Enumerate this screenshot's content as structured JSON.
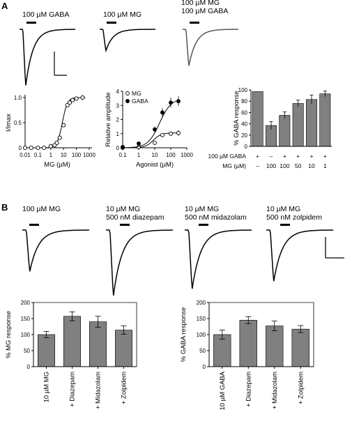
{
  "panels": {
    "A": "A",
    "B": "B"
  },
  "trace_labels_A": [
    [
      "100 µM GABA"
    ],
    [
      "100 µM MG"
    ],
    [
      "100 µM MG",
      "100 µM GABA"
    ]
  ],
  "trace_labels_B": [
    [
      "100 µM MG"
    ],
    [
      "10 µM MG",
      "500 nM diazepam"
    ],
    [
      "10 µM MG",
      "500 nM midazolam"
    ],
    [
      "10 µM MG",
      "500 nM zolpidem"
    ]
  ],
  "traces_A": [
    {
      "peak": 1.0,
      "color": "#000000"
    },
    {
      "peak": 0.38,
      "color": "#000000"
    },
    {
      "peak": 0.65,
      "color": "#555555"
    }
  ],
  "traces_B": [
    {
      "peak": 0.55
    },
    {
      "peak": 0.87
    },
    {
      "peak": 0.78
    },
    {
      "peak": 0.68
    }
  ],
  "chart_data": [
    {
      "type": "scatter",
      "xlabel": "MG (µM)",
      "ylabel": "I/Imax",
      "xscale": "log",
      "xlim": [
        0.01,
        1000
      ],
      "ylim": [
        0,
        1.0
      ],
      "xticks": [
        "0.01",
        "0.1",
        "1",
        "10",
        "100",
        "1000"
      ],
      "yticks": [
        "0",
        "0.5",
        "1.0"
      ],
      "x": [
        0.01,
        0.03,
        0.1,
        0.3,
        1,
        2,
        3,
        5,
        10,
        20,
        30,
        50,
        100,
        300
      ],
      "y": [
        0.0,
        0.0,
        0.0,
        0.0,
        0.03,
        0.05,
        0.1,
        0.2,
        0.45,
        0.85,
        0.9,
        0.95,
        0.98,
        1.0
      ],
      "err": [
        0.0,
        0.0,
        0.0,
        0.0,
        0.01,
        0.01,
        0.02,
        0.03,
        0.04,
        0.04,
        0.04,
        0.04,
        0.04,
        0.05
      ],
      "fit": {
        "ec50": 8,
        "hill": 2.2
      }
    },
    {
      "type": "scatter",
      "xlabel": "Agonist (µM)",
      "ylabel": "Relative amplitude",
      "xscale": "log",
      "xlim": [
        0.1,
        1000
      ],
      "ylim": [
        0,
        4
      ],
      "xticks": [
        "0.1",
        "1",
        "10",
        "100",
        "1000"
      ],
      "yticks": [
        "0",
        "1",
        "2",
        "3",
        "4"
      ],
      "legend": "top-left",
      "series": [
        {
          "name": "MG",
          "marker": "open",
          "x": [
            0.1,
            1,
            10,
            30,
            100,
            300
          ],
          "y": [
            0.0,
            0.05,
            0.35,
            0.9,
            1.0,
            1.05
          ],
          "err": [
            0.0,
            0.05,
            0.1,
            0.15,
            0.15,
            0.2
          ],
          "fit": {
            "max": 1.05,
            "ec50": 8,
            "hill": 1.8
          }
        },
        {
          "name": "GABA",
          "marker": "filled",
          "x": [
            0.1,
            1,
            10,
            30,
            100,
            300
          ],
          "y": [
            0.05,
            0.3,
            1.3,
            2.5,
            3.2,
            3.3
          ],
          "err": [
            0.0,
            0.1,
            0.2,
            0.3,
            0.35,
            0.35
          ],
          "fit": {
            "max": 3.5,
            "ec50": 20,
            "hill": 1.2
          }
        }
      ]
    },
    {
      "type": "bar",
      "ylabel": "% GABA response",
      "ylim": [
        0,
        100
      ],
      "yticks": [
        "0",
        "20",
        "40",
        "60",
        "80",
        "100"
      ],
      "values": [
        97,
        37,
        55,
        76,
        83,
        93
      ],
      "err": [
        0,
        7,
        6,
        6,
        8,
        5
      ],
      "row_labels": [
        "100 µM GABA",
        "MG (µM)"
      ],
      "row1": [
        "+",
        "–",
        "+",
        "+",
        "+",
        "+"
      ],
      "row2": [
        "–",
        "100",
        "100",
        "50",
        "10",
        "1"
      ]
    },
    {
      "type": "bar",
      "ylabel": "% MG response",
      "ylim": [
        0,
        200
      ],
      "yticks": [
        "0",
        "50",
        "100",
        "150",
        "200"
      ],
      "categories": [
        "10 µM MG",
        "+ Diazepam",
        "+ Midazolam",
        "+ Zolpidem"
      ],
      "values": [
        100,
        157,
        140,
        114
      ],
      "err": [
        10,
        14,
        17,
        13
      ]
    },
    {
      "type": "bar",
      "ylabel": "% GABA response",
      "ylim": [
        0,
        200
      ],
      "yticks": [
        "0",
        "50",
        "100",
        "150",
        "200"
      ],
      "categories": [
        "10 µM GABA",
        "+ Diazepam",
        "+ Midazolam",
        "+ Zolpidem"
      ],
      "values": [
        100,
        145,
        127,
        117
      ],
      "err": [
        14,
        11,
        15,
        11
      ]
    }
  ]
}
